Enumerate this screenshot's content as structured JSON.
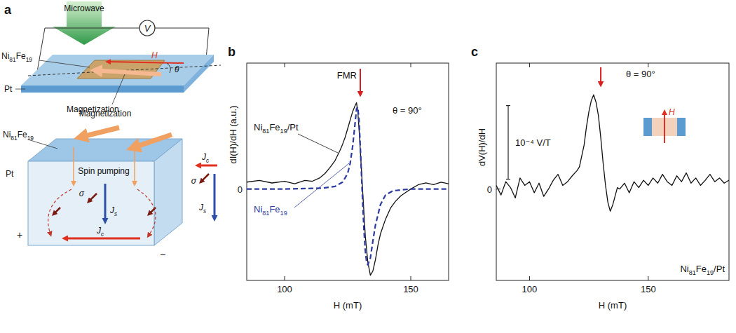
{
  "diagram": {
    "panel": "a",
    "microwave": "Microwave",
    "voltmeter": "V",
    "layer": "Ni81Fe19",
    "substrate": "Pt",
    "field": "H",
    "angle": "θ",
    "magnetization": "Magnetization",
    "lower": {
      "magnetization": "Magnetization",
      "layer": "Ni81Fe19",
      "spin_pumping": "Spin pumping",
      "substrate": "Pt",
      "sigma": "σ",
      "spin_current": "Js",
      "charge_current": "Jc",
      "plus": "+",
      "minus": "−"
    }
  },
  "chart_data": [
    {
      "panel": "b",
      "type": "line",
      "x_label": "H (mT)",
      "y_label": "dI(H)/dH (a.u.)",
      "condition": "θ = 90°",
      "fmr": {
        "label": "FMR",
        "x": 130
      },
      "xlim": [
        85,
        165
      ],
      "xticks": [
        100,
        150
      ],
      "ylim": [
        -1.06,
        1.46
      ],
      "yticks": [
        0
      ],
      "series": [
        {
          "name": "Ni81Fe19/Pt",
          "color": "#111111",
          "line_style": "solid",
          "x": [
            85,
            90,
            95,
            100,
            104,
            108,
            111,
            114,
            116,
            118,
            120,
            122,
            123,
            124,
            125,
            126,
            127,
            128,
            128.5,
            129,
            129.5,
            130,
            130.5,
            131,
            131.5,
            132,
            133,
            134,
            135,
            136,
            137,
            138,
            140,
            142,
            144,
            146,
            148,
            150,
            153,
            156,
            159,
            162,
            165
          ],
          "values": [
            0.08,
            0.1,
            0.07,
            0.09,
            0.06,
            0.1,
            0.09,
            0.13,
            0.18,
            0.25,
            0.33,
            0.45,
            0.52,
            0.6,
            0.7,
            0.8,
            0.9,
            0.97,
            1.0,
            0.9,
            0.7,
            0.45,
            0.2,
            -0.05,
            -0.3,
            -0.55,
            -0.85,
            -1.0,
            -0.95,
            -0.82,
            -0.65,
            -0.52,
            -0.35,
            -0.22,
            -0.14,
            -0.08,
            -0.04,
            0.0,
            0.05,
            0.07,
            0.05,
            0.08,
            0.06
          ]
        },
        {
          "name": "Ni81Fe19",
          "color": "#2b3aa0",
          "line_style": "dashed",
          "x": [
            85,
            100,
            115,
            120,
            123,
            125,
            126,
            127,
            128,
            128.5,
            129,
            129.5,
            130,
            130.5,
            131,
            131.5,
            132,
            132.5,
            133,
            134,
            135,
            136,
            138,
            140,
            143,
            150,
            165
          ],
          "values": [
            0,
            0,
            0.01,
            0.03,
            0.08,
            0.18,
            0.3,
            0.5,
            0.78,
            0.93,
            0.95,
            0.8,
            0.5,
            0.15,
            -0.2,
            -0.5,
            -0.72,
            -0.85,
            -0.88,
            -0.8,
            -0.6,
            -0.42,
            -0.18,
            -0.07,
            -0.02,
            0,
            0
          ]
        }
      ]
    },
    {
      "panel": "c",
      "type": "line",
      "x_label": "H (mT)",
      "y_label": "dV(H)/dH",
      "condition": "θ = 90°",
      "fmr": {
        "x": 130
      },
      "scale_bar": {
        "value": 0.0001,
        "label": "10⁻⁴ V/T"
      },
      "inset_label": "H",
      "xlim": [
        86,
        184
      ],
      "xticks": [
        100,
        150
      ],
      "ylim": [
        -0.000124,
        0.000171
      ],
      "yticks": [
        0
      ],
      "series": [
        {
          "name": "Ni81Fe19/Pt",
          "color": "#111111",
          "line_style": "solid",
          "x": [
            86,
            88,
            90,
            92,
            94,
            96,
            98,
            100,
            102,
            104,
            106,
            108,
            110,
            112,
            114,
            116,
            118,
            120,
            121,
            122,
            123,
            124,
            125,
            126,
            127,
            128,
            129,
            130,
            131,
            132,
            133,
            134,
            135,
            136,
            137,
            138,
            140,
            142,
            144,
            146,
            148,
            150,
            152,
            154,
            156,
            158,
            160,
            162,
            164,
            166,
            168,
            170,
            172,
            174,
            176,
            178,
            180,
            182,
            184
          ],
          "values": [
            5e-06,
            -8e-06,
            1e-05,
            2e-06,
            -1.2e-05,
            1.5e-05,
            5e-06,
            1e-05,
            -5e-06,
            8e-06,
            -1e-05,
            0.0,
            1.2e-05,
            2e-05,
            5e-06,
            1e-05,
            1.8e-05,
            2.5e-05,
            3e-05,
            4.5e-05,
            6e-05,
            8.5e-05,
            0.000105,
            0.00012,
            0.000128,
            0.000118,
            0.0001,
            7e-05,
            3.5e-05,
            5e-06,
            -1.8e-05,
            -3e-05,
            -2.2e-05,
            -1e-05,
            2e-06,
            0.0,
            8e-06,
            -5e-06,
            1e-05,
            2e-06,
            1.2e-05,
            5e-06,
            1.5e-05,
            8e-06,
            2e-05,
            1e-05,
            5e-06,
            1.8e-05,
            1e-05,
            2.2e-05,
            8e-06,
            1.5e-05,
            5e-06,
            1.2e-05,
            2e-05,
            1e-05,
            1.5e-05,
            8e-06,
            1.2e-05
          ]
        }
      ]
    }
  ]
}
